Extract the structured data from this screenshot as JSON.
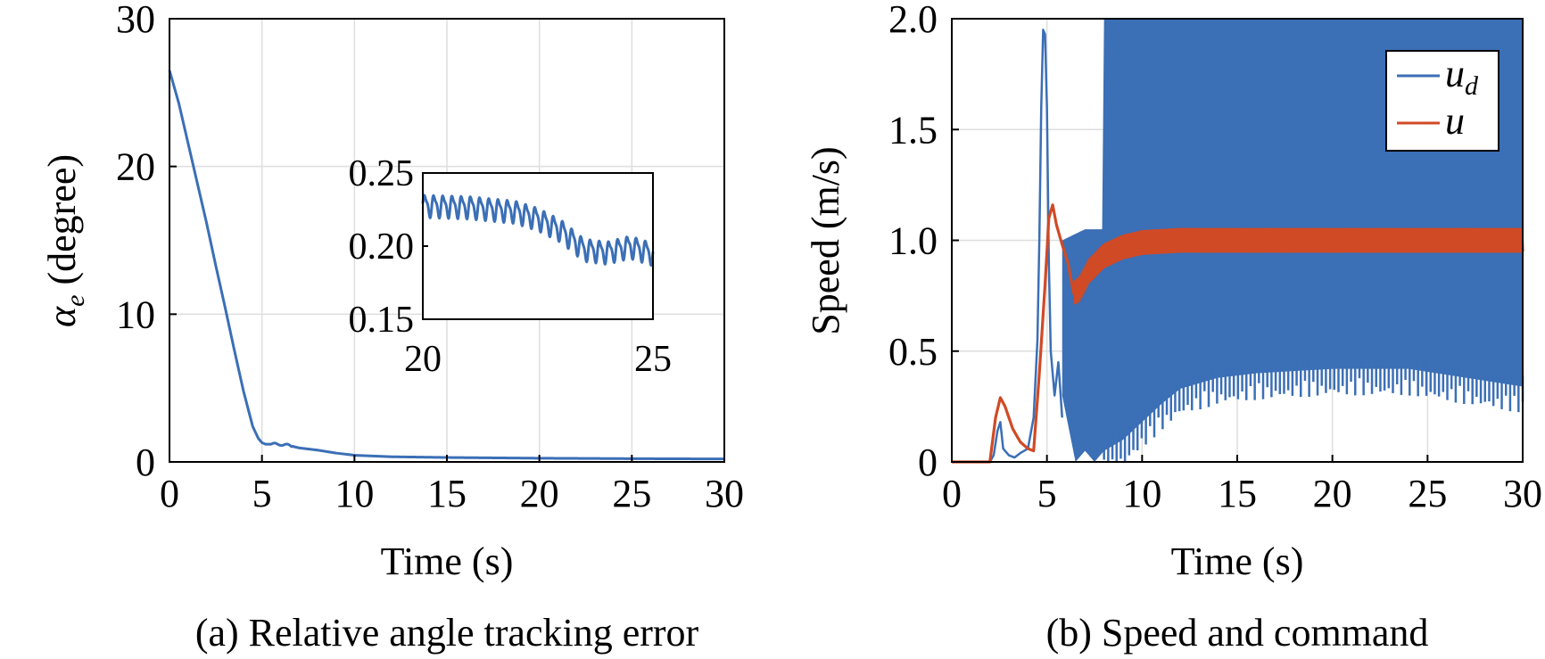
{
  "chart_data": [
    {
      "type": "line",
      "caption": "(a) Relative angle tracking error",
      "xlabel": "Time (s)",
      "ylabel_symbol": "α",
      "ylabel_subscript": "e",
      "ylabel_text": " (degree)",
      "xlim": [
        0,
        30
      ],
      "ylim": [
        0,
        30
      ],
      "xticks": [
        "0",
        "5",
        "10",
        "15",
        "20",
        "25",
        "30"
      ],
      "yticks": [
        "0",
        "10",
        "20",
        "30"
      ],
      "grid": true,
      "series": [
        {
          "name": "alpha_e",
          "color": "#3b6fb6",
          "x": [
            0,
            0.5,
            1,
            1.5,
            2,
            2.5,
            3,
            3.5,
            4,
            4.5,
            4.8,
            5.0,
            5.2,
            5.5,
            6,
            6.5,
            7,
            8,
            9,
            10,
            12,
            15,
            20,
            25,
            30
          ],
          "y": [
            26.5,
            24.3,
            21.6,
            18.9,
            16.2,
            13.3,
            10.5,
            7.6,
            4.8,
            2.4,
            1.6,
            1.3,
            1.2,
            1.2,
            1.2,
            1.1,
            0.95,
            0.8,
            0.6,
            0.45,
            0.35,
            0.3,
            0.25,
            0.22,
            0.2
          ]
        }
      ],
      "inset": {
        "xlim": [
          20,
          25
        ],
        "ylim": [
          0.15,
          0.25
        ],
        "xticks": [
          "20",
          "25"
        ],
        "yticks": [
          "0.15",
          "0.20",
          "0.25"
        ],
        "signal": {
          "x": [
            20,
            21,
            22,
            22.5,
            23,
            23.5,
            24,
            24.5,
            25
          ],
          "y": [
            0.228,
            0.227,
            0.224,
            0.219,
            0.211,
            0.198,
            0.196,
            0.2,
            0.195
          ],
          "osc_period": 0.2,
          "osc_amplitude": 0.009
        }
      }
    },
    {
      "type": "line",
      "caption": "(b) Speed and command",
      "xlabel": "Time (s)",
      "ylabel": "Speed (m/s)",
      "xlim": [
        0,
        30
      ],
      "ylim": [
        0,
        2.0
      ],
      "xticks": [
        "0",
        "5",
        "10",
        "15",
        "20",
        "25",
        "30"
      ],
      "yticks": [
        "0",
        "0.5",
        "1.0",
        "1.5",
        "2.0"
      ],
      "grid": true,
      "legend": {
        "placement": "top-right"
      },
      "series": [
        {
          "name": "u_d",
          "legend_symbol": "u",
          "legend_subscript": "d",
          "color": "#3b6fb6",
          "transient_x": [
            0,
            2.0,
            2.2,
            2.4,
            2.55,
            2.7,
            3.0,
            3.3,
            3.6,
            4.0,
            4.3,
            4.5,
            4.6,
            4.7,
            4.8,
            4.9,
            5.0,
            5.1,
            5.2,
            5.4,
            5.6,
            5.8
          ],
          "transient_y": [
            0,
            0,
            0.03,
            0.14,
            0.18,
            0.06,
            0.03,
            0.02,
            0.04,
            0.06,
            0.2,
            0.55,
            1.0,
            1.6,
            1.95,
            1.93,
            1.6,
            0.9,
            0.5,
            0.3,
            0.45,
            0.2
          ],
          "band_start": 5.8,
          "band_upper_x": [
            5.8,
            7.0,
            7.9,
            8.0,
            30
          ],
          "band_upper_y": [
            1.0,
            1.05,
            1.05,
            2.0,
            2.0
          ],
          "band_lower_x": [
            5.8,
            6.5,
            7.0,
            7.5,
            8.0,
            9,
            10,
            11,
            12,
            14,
            16,
            20,
            24,
            27,
            30
          ],
          "band_lower_y": [
            0.3,
            0.0,
            0.05,
            0.0,
            0.05,
            0.1,
            0.18,
            0.26,
            0.33,
            0.38,
            0.4,
            0.42,
            0.42,
            0.38,
            0.34
          ]
        },
        {
          "name": "u",
          "legend_symbol": "u",
          "color": "#d04a26",
          "x": [
            0,
            2.0,
            2.3,
            2.55,
            2.8,
            3.2,
            3.6,
            4.0,
            4.3,
            4.6,
            4.9,
            5.1,
            5.3,
            5.5,
            5.8,
            6.1,
            6.4,
            6.7,
            7.2,
            8,
            9,
            10,
            12,
            15,
            20,
            25,
            30
          ],
          "y": [
            0,
            0,
            0.2,
            0.29,
            0.25,
            0.15,
            0.09,
            0.06,
            0.05,
            0.4,
            0.8,
            1.1,
            1.16,
            1.07,
            0.98,
            0.9,
            0.76,
            0.78,
            0.86,
            0.93,
            0.97,
            0.99,
            1.0,
            1.0,
            1.0,
            1.0,
            1.0
          ],
          "ripple_start": 6.4,
          "ripple_amplitude": 0.05
        }
      ]
    }
  ]
}
